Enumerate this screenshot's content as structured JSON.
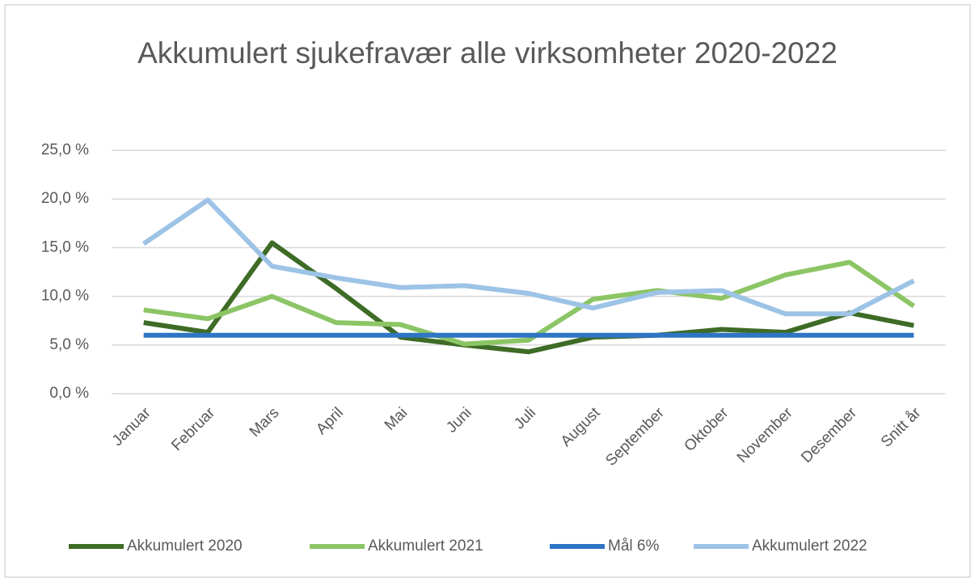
{
  "chart_data": {
    "type": "line",
    "title": "Akkumulert sjukefravær alle virksomheter 2020-2022",
    "categories": [
      "Januar",
      "Februar",
      "Mars",
      "April",
      "Mai",
      "Juni",
      "Juli",
      "August",
      "September",
      "Oktober",
      "November",
      "Desember",
      "Snitt år"
    ],
    "series": [
      {
        "name": "Akkumulert 2020",
        "color": "#3e6b26",
        "values": [
          7.3,
          6.3,
          15.5,
          10.8,
          5.8,
          5.0,
          4.3,
          5.8,
          6.0,
          6.6,
          6.3,
          8.3,
          7.0
        ]
      },
      {
        "name": "Akkumulert 2021",
        "color": "#8cc565",
        "values": [
          8.6,
          7.7,
          10.0,
          7.3,
          7.1,
          5.1,
          5.5,
          9.7,
          10.6,
          9.8,
          12.2,
          13.5,
          9.0
        ]
      },
      {
        "name": "Mål 6%",
        "color": "#2e75c5",
        "values": [
          6,
          6,
          6,
          6,
          6,
          6,
          6,
          6,
          6,
          6,
          6,
          6,
          6
        ]
      },
      {
        "name": "Akkumulert 2022",
        "color": "#9dc3e6",
        "values": [
          15.4,
          19.9,
          13.1,
          11.9,
          10.9,
          11.1,
          10.3,
          8.8,
          10.4,
          10.6,
          8.2,
          8.2,
          11.6
        ]
      }
    ],
    "ylim": [
      0,
      25
    ],
    "yticks": [
      {
        "value": 0,
        "label": "0,0 %"
      },
      {
        "value": 5,
        "label": "5,0 %"
      },
      {
        "value": 10,
        "label": "10,0 %"
      },
      {
        "value": 15,
        "label": "15,0 %"
      },
      {
        "value": 20,
        "label": "20,0 %"
      },
      {
        "value": 25,
        "label": "25,0 %"
      }
    ],
    "grid": true,
    "legend": "bottom"
  }
}
